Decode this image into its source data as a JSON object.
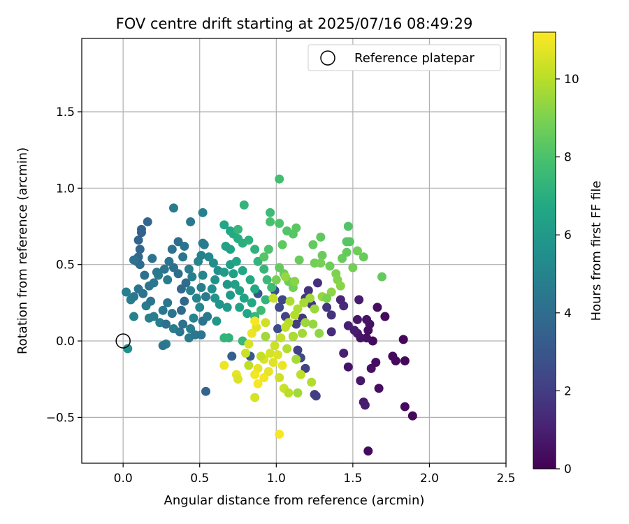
{
  "chart_data": {
    "type": "scatter",
    "title": "FOV centre drift starting at 2025/07/16 08:49:29",
    "xlabel": "Angular distance from reference (arcmin)",
    "ylabel": "Rotation from reference (arcmin)",
    "xlim": [
      -0.27,
      2.5
    ],
    "ylim": [
      -0.8,
      1.98
    ],
    "xticks": [
      0.0,
      0.5,
      1.0,
      1.5,
      2.0,
      2.5
    ],
    "xtick_labels": [
      "0.0",
      "0.5",
      "1.0",
      "1.5",
      "2.0",
      "2.5"
    ],
    "yticks": [
      -0.5,
      0.0,
      0.5,
      1.0,
      1.5
    ],
    "ytick_labels": [
      "−0.5",
      "0.0",
      "0.5",
      "1.0",
      "1.5"
    ],
    "grid": true,
    "legend": {
      "placement": "top-right",
      "entries": [
        "Reference platepar"
      ]
    },
    "reference_point": {
      "label": "Reference platepar",
      "x": 0.0,
      "y": 0.0
    },
    "colorbar": {
      "label": "Hours from first FF file",
      "colormap": "viridis",
      "range": [
        0,
        11.2
      ],
      "ticks": [
        0,
        2,
        4,
        6,
        8,
        10
      ],
      "tick_labels": [
        "0",
        "2",
        "4",
        "6",
        "8",
        "10"
      ]
    },
    "points": [
      {
        "x": 1.6,
        "y": -0.72,
        "c": 0.3
      },
      {
        "x": 1.89,
        "y": -0.49,
        "c": 0.2
      },
      {
        "x": 1.84,
        "y": -0.43,
        "c": 0.3
      },
      {
        "x": 1.57,
        "y": -0.4,
        "c": 0.8
      },
      {
        "x": 1.58,
        "y": -0.42,
        "c": 0.9
      },
      {
        "x": 1.67,
        "y": -0.31,
        "c": 0.4
      },
      {
        "x": 1.55,
        "y": -0.26,
        "c": 0.7
      },
      {
        "x": 1.62,
        "y": -0.18,
        "c": 0.5
      },
      {
        "x": 1.84,
        "y": -0.13,
        "c": 0.2
      },
      {
        "x": 1.76,
        "y": -0.1,
        "c": 0.3
      },
      {
        "x": 1.78,
        "y": -0.13,
        "c": 0.3
      },
      {
        "x": 1.65,
        "y": -0.14,
        "c": 0.4
      },
      {
        "x": 1.47,
        "y": -0.17,
        "c": 0.6
      },
      {
        "x": 1.44,
        "y": -0.08,
        "c": 1.0
      },
      {
        "x": 1.63,
        "y": 0.0,
        "c": 0.3
      },
      {
        "x": 1.59,
        "y": 0.02,
        "c": 0.5
      },
      {
        "x": 1.55,
        "y": 0.02,
        "c": 0.6
      },
      {
        "x": 1.53,
        "y": 0.05,
        "c": 0.7
      },
      {
        "x": 1.51,
        "y": 0.07,
        "c": 0.9
      },
      {
        "x": 1.83,
        "y": 0.01,
        "c": 0.2
      },
      {
        "x": 1.6,
        "y": 0.07,
        "c": 0.4
      },
      {
        "x": 1.61,
        "y": 0.11,
        "c": 0.5
      },
      {
        "x": 1.53,
        "y": 0.14,
        "c": 0.7
      },
      {
        "x": 1.59,
        "y": 0.14,
        "c": 0.6
      },
      {
        "x": 1.71,
        "y": 0.16,
        "c": 0.3
      },
      {
        "x": 1.47,
        "y": 0.1,
        "c": 1.0
      },
      {
        "x": 1.36,
        "y": 0.06,
        "c": 1.4
      },
      {
        "x": 1.66,
        "y": 0.22,
        "c": 0.4
      },
      {
        "x": 1.54,
        "y": 0.27,
        "c": 0.9
      },
      {
        "x": 1.42,
        "y": 0.27,
        "c": 1.2
      },
      {
        "x": 1.44,
        "y": 0.23,
        "c": 1.3
      },
      {
        "x": 1.36,
        "y": 0.17,
        "c": 1.6
      },
      {
        "x": 1.33,
        "y": 0.22,
        "c": 1.7
      },
      {
        "x": 1.23,
        "y": 0.24,
        "c": 1.8
      },
      {
        "x": 1.26,
        "y": -0.36,
        "c": 2.2
      },
      {
        "x": 1.25,
        "y": -0.35,
        "c": 2.0
      },
      {
        "x": 1.19,
        "y": -0.18,
        "c": 2.3
      },
      {
        "x": 1.16,
        "y": -0.11,
        "c": 2.5
      },
      {
        "x": 1.14,
        "y": -0.06,
        "c": 2.1
      },
      {
        "x": 1.11,
        "y": 0.03,
        "c": 1.9
      },
      {
        "x": 1.13,
        "y": 0.11,
        "c": 2.0
      },
      {
        "x": 1.17,
        "y": 0.15,
        "c": 1.7
      },
      {
        "x": 1.06,
        "y": 0.16,
        "c": 2.2
      },
      {
        "x": 1.01,
        "y": 0.08,
        "c": 2.6
      },
      {
        "x": 1.02,
        "y": 0.22,
        "c": 2.4
      },
      {
        "x": 1.04,
        "y": 0.27,
        "c": 2.3
      },
      {
        "x": 1.19,
        "y": 0.28,
        "c": 1.9
      },
      {
        "x": 1.27,
        "y": 0.38,
        "c": 1.5
      },
      {
        "x": 1.21,
        "y": 0.33,
        "c": 1.6
      },
      {
        "x": 0.99,
        "y": 0.33,
        "c": 2.7
      },
      {
        "x": 0.88,
        "y": 0.31,
        "c": 3.0
      },
      {
        "x": 0.83,
        "y": -0.1,
        "c": 3.1
      },
      {
        "x": 0.71,
        "y": -0.1,
        "c": 3.4
      },
      {
        "x": 0.54,
        "y": -0.33,
        "c": 3.6
      },
      {
        "x": 0.28,
        "y": -0.02,
        "c": 4.6
      },
      {
        "x": 0.26,
        "y": -0.03,
        "c": 4.4
      },
      {
        "x": 0.03,
        "y": -0.05,
        "c": 5.5
      },
      {
        "x": 0.07,
        "y": 0.16,
        "c": 4.9
      },
      {
        "x": 0.02,
        "y": 0.32,
        "c": 4.8
      },
      {
        "x": 0.05,
        "y": 0.27,
        "c": 4.7
      },
      {
        "x": 0.07,
        "y": 0.29,
        "c": 4.5
      },
      {
        "x": 0.1,
        "y": 0.34,
        "c": 4.3
      },
      {
        "x": 0.13,
        "y": 0.31,
        "c": 4.2
      },
      {
        "x": 0.15,
        "y": 0.23,
        "c": 4.6
      },
      {
        "x": 0.18,
        "y": 0.26,
        "c": 4.4
      },
      {
        "x": 0.17,
        "y": 0.15,
        "c": 4.9
      },
      {
        "x": 0.2,
        "y": 0.16,
        "c": 4.7
      },
      {
        "x": 0.24,
        "y": 0.12,
        "c": 4.8
      },
      {
        "x": 0.26,
        "y": 0.2,
        "c": 4.5
      },
      {
        "x": 0.29,
        "y": 0.25,
        "c": 4.4
      },
      {
        "x": 0.32,
        "y": 0.18,
        "c": 4.3
      },
      {
        "x": 0.28,
        "y": 0.11,
        "c": 4.1
      },
      {
        "x": 0.33,
        "y": 0.08,
        "c": 4.6
      },
      {
        "x": 0.37,
        "y": 0.06,
        "c": 4.4
      },
      {
        "x": 0.39,
        "y": 0.11,
        "c": 4.2
      },
      {
        "x": 0.38,
        "y": 0.2,
        "c": 3.9
      },
      {
        "x": 0.4,
        "y": 0.26,
        "c": 3.7
      },
      {
        "x": 0.38,
        "y": 0.34,
        "c": 3.8
      },
      {
        "x": 0.41,
        "y": 0.38,
        "c": 3.9
      },
      {
        "x": 0.36,
        "y": 0.44,
        "c": 4.0
      },
      {
        "x": 0.33,
        "y": 0.48,
        "c": 4.1
      },
      {
        "x": 0.3,
        "y": 0.52,
        "c": 4.3
      },
      {
        "x": 0.27,
        "y": 0.47,
        "c": 4.4
      },
      {
        "x": 0.23,
        "y": 0.43,
        "c": 4.6
      },
      {
        "x": 0.2,
        "y": 0.38,
        "c": 4.5
      },
      {
        "x": 0.17,
        "y": 0.36,
        "c": 4.4
      },
      {
        "x": 0.14,
        "y": 0.43,
        "c": 4.1
      },
      {
        "x": 0.11,
        "y": 0.5,
        "c": 4.0
      },
      {
        "x": 0.09,
        "y": 0.52,
        "c": 3.9
      },
      {
        "x": 0.1,
        "y": 0.55,
        "c": 3.8
      },
      {
        "x": 0.11,
        "y": 0.6,
        "c": 3.7
      },
      {
        "x": 0.1,
        "y": 0.66,
        "c": 3.6
      },
      {
        "x": 0.12,
        "y": 0.71,
        "c": 3.5
      },
      {
        "x": 0.12,
        "y": 0.73,
        "c": 3.5
      },
      {
        "x": 0.16,
        "y": 0.78,
        "c": 3.7
      },
      {
        "x": 0.07,
        "y": 0.53,
        "c": 4.2
      },
      {
        "x": 0.19,
        "y": 0.54,
        "c": 4.3
      },
      {
        "x": 0.22,
        "y": 0.45,
        "c": 4.5
      },
      {
        "x": 0.29,
        "y": 0.4,
        "c": 4.6
      },
      {
        "x": 0.32,
        "y": 0.6,
        "c": 4.2
      },
      {
        "x": 0.36,
        "y": 0.65,
        "c": 4.0
      },
      {
        "x": 0.4,
        "y": 0.62,
        "c": 4.3
      },
      {
        "x": 0.39,
        "y": 0.55,
        "c": 4.4
      },
      {
        "x": 0.43,
        "y": 0.47,
        "c": 4.7
      },
      {
        "x": 0.45,
        "y": 0.42,
        "c": 4.8
      },
      {
        "x": 0.44,
        "y": 0.33,
        "c": 4.9
      },
      {
        "x": 0.48,
        "y": 0.28,
        "c": 5.0
      },
      {
        "x": 0.5,
        "y": 0.22,
        "c": 5.1
      },
      {
        "x": 0.46,
        "y": 0.15,
        "c": 5.0
      },
      {
        "x": 0.44,
        "y": 0.08,
        "c": 4.7
      },
      {
        "x": 0.43,
        "y": 0.02,
        "c": 4.6
      },
      {
        "x": 0.47,
        "y": 0.04,
        "c": 4.5
      },
      {
        "x": 0.51,
        "y": 0.04,
        "c": 4.4
      },
      {
        "x": 0.52,
        "y": 0.13,
        "c": 4.3
      },
      {
        "x": 0.55,
        "y": 0.16,
        "c": 4.5
      },
      {
        "x": 0.54,
        "y": 0.29,
        "c": 4.6
      },
      {
        "x": 0.51,
        "y": 0.35,
        "c": 4.8
      },
      {
        "x": 0.52,
        "y": 0.43,
        "c": 5.1
      },
      {
        "x": 0.49,
        "y": 0.52,
        "c": 5.0
      },
      {
        "x": 0.51,
        "y": 0.56,
        "c": 4.9
      },
      {
        "x": 0.53,
        "y": 0.63,
        "c": 4.7
      },
      {
        "x": 0.52,
        "y": 0.64,
        "c": 4.6
      },
      {
        "x": 0.44,
        "y": 0.78,
        "c": 4.5
      },
      {
        "x": 0.33,
        "y": 0.87,
        "c": 4.6
      },
      {
        "x": 0.52,
        "y": 0.84,
        "c": 4.9
      },
      {
        "x": 0.56,
        "y": 0.55,
        "c": 5.2
      },
      {
        "x": 0.59,
        "y": 0.51,
        "c": 5.4
      },
      {
        "x": 0.62,
        "y": 0.46,
        "c": 5.5
      },
      {
        "x": 0.6,
        "y": 0.4,
        "c": 5.6
      },
      {
        "x": 0.58,
        "y": 0.34,
        "c": 5.6
      },
      {
        "x": 0.6,
        "y": 0.28,
        "c": 5.7
      },
      {
        "x": 0.63,
        "y": 0.24,
        "c": 5.8
      },
      {
        "x": 0.61,
        "y": 0.13,
        "c": 5.9
      },
      {
        "x": 0.68,
        "y": 0.22,
        "c": 6.0
      },
      {
        "x": 0.7,
        "y": 0.3,
        "c": 6.0
      },
      {
        "x": 0.68,
        "y": 0.37,
        "c": 5.9
      },
      {
        "x": 0.66,
        "y": 0.45,
        "c": 6.1
      },
      {
        "x": 0.7,
        "y": 0.5,
        "c": 6.2
      },
      {
        "x": 0.72,
        "y": 0.44,
        "c": 6.3
      },
      {
        "x": 0.73,
        "y": 0.37,
        "c": 6.3
      },
      {
        "x": 0.76,
        "y": 0.33,
        "c": 6.4
      },
      {
        "x": 0.79,
        "y": 0.28,
        "c": 6.5
      },
      {
        "x": 0.76,
        "y": 0.22,
        "c": 6.4
      },
      {
        "x": 0.81,
        "y": 0.18,
        "c": 6.6
      },
      {
        "x": 0.84,
        "y": 0.25,
        "c": 6.7
      },
      {
        "x": 0.86,
        "y": 0.34,
        "c": 6.8
      },
      {
        "x": 0.83,
        "y": 0.4,
        "c": 6.7
      },
      {
        "x": 0.78,
        "y": 0.46,
        "c": 6.6
      },
      {
        "x": 0.74,
        "y": 0.52,
        "c": 6.5
      },
      {
        "x": 0.7,
        "y": 0.6,
        "c": 6.5
      },
      {
        "x": 0.67,
        "y": 0.62,
        "c": 6.4
      },
      {
        "x": 0.66,
        "y": 0.76,
        "c": 6.6
      },
      {
        "x": 0.7,
        "y": 0.72,
        "c": 6.6
      },
      {
        "x": 0.72,
        "y": 0.7,
        "c": 6.8
      },
      {
        "x": 0.75,
        "y": 0.67,
        "c": 6.9
      },
      {
        "x": 0.78,
        "y": 0.64,
        "c": 7.0
      },
      {
        "x": 0.82,
        "y": 0.66,
        "c": 7.1
      },
      {
        "x": 0.86,
        "y": 0.6,
        "c": 7.2
      },
      {
        "x": 0.88,
        "y": 0.52,
        "c": 7.3
      },
      {
        "x": 0.92,
        "y": 0.47,
        "c": 7.4
      },
      {
        "x": 0.94,
        "y": 0.4,
        "c": 7.5
      },
      {
        "x": 0.97,
        "y": 0.35,
        "c": 7.6
      },
      {
        "x": 0.93,
        "y": 0.27,
        "c": 7.3
      },
      {
        "x": 0.9,
        "y": 0.2,
        "c": 7.6
      },
      {
        "x": 0.86,
        "y": 0.16,
        "c": 7.4
      },
      {
        "x": 0.78,
        "y": 0.0,
        "c": 7.5
      },
      {
        "x": 0.69,
        "y": 0.02,
        "c": 7.2
      },
      {
        "x": 0.66,
        "y": 0.02,
        "c": 7.3
      },
      {
        "x": 0.75,
        "y": 0.73,
        "c": 7.4
      },
      {
        "x": 0.79,
        "y": 0.89,
        "c": 7.3
      },
      {
        "x": 0.96,
        "y": 0.84,
        "c": 7.6
      },
      {
        "x": 1.02,
        "y": 1.06,
        "c": 7.8
      },
      {
        "x": 0.96,
        "y": 0.78,
        "c": 7.9
      },
      {
        "x": 1.02,
        "y": 0.77,
        "c": 8.0
      },
      {
        "x": 1.07,
        "y": 0.72,
        "c": 8.1
      },
      {
        "x": 1.11,
        "y": 0.7,
        "c": 8.2
      },
      {
        "x": 1.13,
        "y": 0.74,
        "c": 8.3
      },
      {
        "x": 1.04,
        "y": 0.63,
        "c": 8.4
      },
      {
        "x": 0.95,
        "y": 0.6,
        "c": 8.0
      },
      {
        "x": 0.92,
        "y": 0.55,
        "c": 8.2
      },
      {
        "x": 1.02,
        "y": 0.48,
        "c": 8.5
      },
      {
        "x": 1.05,
        "y": 0.44,
        "c": 8.6
      },
      {
        "x": 1.08,
        "y": 0.39,
        "c": 8.7
      },
      {
        "x": 1.11,
        "y": 0.35,
        "c": 8.8
      },
      {
        "x": 1.15,
        "y": 0.53,
        "c": 8.6
      },
      {
        "x": 1.24,
        "y": 0.63,
        "c": 8.5
      },
      {
        "x": 1.29,
        "y": 0.68,
        "c": 8.4
      },
      {
        "x": 1.3,
        "y": 0.56,
        "c": 8.6
      },
      {
        "x": 1.25,
        "y": 0.51,
        "c": 8.8
      },
      {
        "x": 1.29,
        "y": 0.51,
        "c": 8.9
      },
      {
        "x": 1.35,
        "y": 0.49,
        "c": 8.7
      },
      {
        "x": 1.39,
        "y": 0.44,
        "c": 9.0
      },
      {
        "x": 1.4,
        "y": 0.4,
        "c": 9.1
      },
      {
        "x": 1.42,
        "y": 0.36,
        "c": 9.2
      },
      {
        "x": 1.43,
        "y": 0.54,
        "c": 8.6
      },
      {
        "x": 1.46,
        "y": 0.58,
        "c": 8.5
      },
      {
        "x": 1.48,
        "y": 0.65,
        "c": 8.3
      },
      {
        "x": 1.46,
        "y": 0.65,
        "c": 8.2
      },
      {
        "x": 1.47,
        "y": 0.75,
        "c": 8.1
      },
      {
        "x": 1.5,
        "y": 0.48,
        "c": 8.8
      },
      {
        "x": 1.53,
        "y": 0.59,
        "c": 8.7
      },
      {
        "x": 1.57,
        "y": 0.55,
        "c": 8.6
      },
      {
        "x": 1.69,
        "y": 0.42,
        "c": 8.5
      },
      {
        "x": 1.36,
        "y": 0.32,
        "c": 9.3
      },
      {
        "x": 1.3,
        "y": 0.29,
        "c": 9.4
      },
      {
        "x": 1.25,
        "y": 0.21,
        "c": 9.5
      },
      {
        "x": 1.22,
        "y": 0.28,
        "c": 9.6
      },
      {
        "x": 1.18,
        "y": 0.25,
        "c": 9.7
      },
      {
        "x": 1.14,
        "y": 0.21,
        "c": 9.8
      },
      {
        "x": 1.12,
        "y": 0.17,
        "c": 9.9
      },
      {
        "x": 1.08,
        "y": 0.12,
        "c": 10.0
      },
      {
        "x": 1.06,
        "y": 0.09,
        "c": 10.1
      },
      {
        "x": 1.03,
        "y": 0.02,
        "c": 10.2
      },
      {
        "x": 0.99,
        "y": -0.03,
        "c": 10.3
      },
      {
        "x": 0.96,
        "y": -0.08,
        "c": 10.5
      },
      {
        "x": 0.92,
        "y": -0.12,
        "c": 10.6
      },
      {
        "x": 0.88,
        "y": -0.18,
        "c": 10.8
      },
      {
        "x": 0.86,
        "y": -0.22,
        "c": 11.0
      },
      {
        "x": 0.88,
        "y": -0.28,
        "c": 11.1
      },
      {
        "x": 0.92,
        "y": -0.24,
        "c": 11.0
      },
      {
        "x": 0.95,
        "y": -0.2,
        "c": 10.8
      },
      {
        "x": 0.98,
        "y": -0.14,
        "c": 10.7
      },
      {
        "x": 1.01,
        "y": -0.09,
        "c": 10.6
      },
      {
        "x": 1.04,
        "y": -0.16,
        "c": 10.9
      },
      {
        "x": 1.02,
        "y": -0.24,
        "c": 10.4
      },
      {
        "x": 1.05,
        "y": -0.31,
        "c": 10.3
      },
      {
        "x": 1.08,
        "y": -0.34,
        "c": 10.0
      },
      {
        "x": 1.14,
        "y": -0.34,
        "c": 9.6
      },
      {
        "x": 1.16,
        "y": -0.22,
        "c": 10.1
      },
      {
        "x": 1.23,
        "y": -0.27,
        "c": 9.9
      },
      {
        "x": 1.13,
        "y": -0.12,
        "c": 9.7
      },
      {
        "x": 1.07,
        "y": -0.05,
        "c": 9.9
      },
      {
        "x": 1.11,
        "y": 0.03,
        "c": 9.8
      },
      {
        "x": 1.17,
        "y": 0.05,
        "c": 9.6
      },
      {
        "x": 1.19,
        "y": 0.12,
        "c": 9.5
      },
      {
        "x": 1.24,
        "y": 0.11,
        "c": 9.4
      },
      {
        "x": 1.28,
        "y": 0.05,
        "c": 9.3
      },
      {
        "x": 0.98,
        "y": 0.28,
        "c": 10.2
      },
      {
        "x": 0.93,
        "y": 0.12,
        "c": 10.4
      },
      {
        "x": 0.87,
        "y": 0.09,
        "c": 10.7
      },
      {
        "x": 0.84,
        "y": 0.05,
        "c": 10.9
      },
      {
        "x": 0.86,
        "y": 0.13,
        "c": 11.1
      },
      {
        "x": 0.82,
        "y": -0.02,
        "c": 10.5
      },
      {
        "x": 0.8,
        "y": -0.08,
        "c": 10.3
      },
      {
        "x": 0.82,
        "y": -0.16,
        "c": 10.1
      },
      {
        "x": 0.74,
        "y": -0.22,
        "c": 10.8
      },
      {
        "x": 0.75,
        "y": -0.25,
        "c": 10.6
      },
      {
        "x": 0.66,
        "y": -0.16,
        "c": 10.9
      },
      {
        "x": 0.86,
        "y": -0.37,
        "c": 10.5
      },
      {
        "x": 1.02,
        "y": -0.61,
        "c": 11.1
      },
      {
        "x": 0.9,
        "y": -0.1,
        "c": 10.2
      },
      {
        "x": 1.09,
        "y": 0.26,
        "c": 9.8
      },
      {
        "x": 1.06,
        "y": 0.42,
        "c": 9.4
      },
      {
        "x": 1.12,
        "y": 0.39,
        "c": 9.2
      },
      {
        "x": 1.0,
        "y": 0.4,
        "c": 8.9
      },
      {
        "x": 0.93,
        "y": 0.03,
        "c": 9.6
      },
      {
        "x": 1.33,
        "y": 0.28,
        "c": 9.0
      }
    ]
  }
}
